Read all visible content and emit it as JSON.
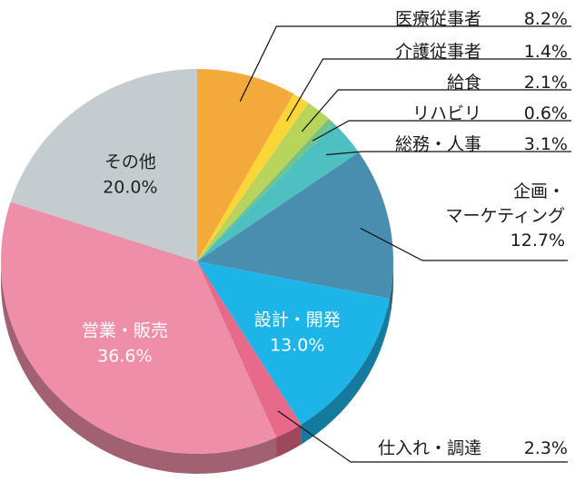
{
  "chart_data": {
    "type": "pie",
    "title": "",
    "unit": "%",
    "slices": [
      {
        "label": "医療従事者",
        "value": 8.2,
        "display": "8.2%",
        "color": "#F4AA3A"
      },
      {
        "label": "介護従事者",
        "value": 1.4,
        "display": "1.4%",
        "color": "#FCD538"
      },
      {
        "label": "給食",
        "value": 2.1,
        "display": "2.1%",
        "color": "#B9D45A"
      },
      {
        "label": "リハビリ",
        "value": 0.6,
        "display": "0.6%",
        "color": "#72C388"
      },
      {
        "label": "総務・人事",
        "value": 3.1,
        "display": "3.1%",
        "color": "#4EC0C2"
      },
      {
        "label": "企画・マーケティング",
        "label_lines": [
          "企画・",
          "マーケティング"
        ],
        "value": 12.7,
        "display": "12.7%",
        "color": "#4A8EAF"
      },
      {
        "label": "設計・開発",
        "value": 13.0,
        "display": "13.0%",
        "color": "#1DB4E8"
      },
      {
        "label": "仕入れ・調達",
        "value": 2.3,
        "display": "2.3%",
        "color": "#E86A8A"
      },
      {
        "label": "営業・販売",
        "value": 36.6,
        "display": "36.6%",
        "color": "#EE8EA8"
      },
      {
        "label": "その他",
        "value": 20.0,
        "display": "20.0%",
        "color": "#C5CCD0"
      }
    ]
  }
}
